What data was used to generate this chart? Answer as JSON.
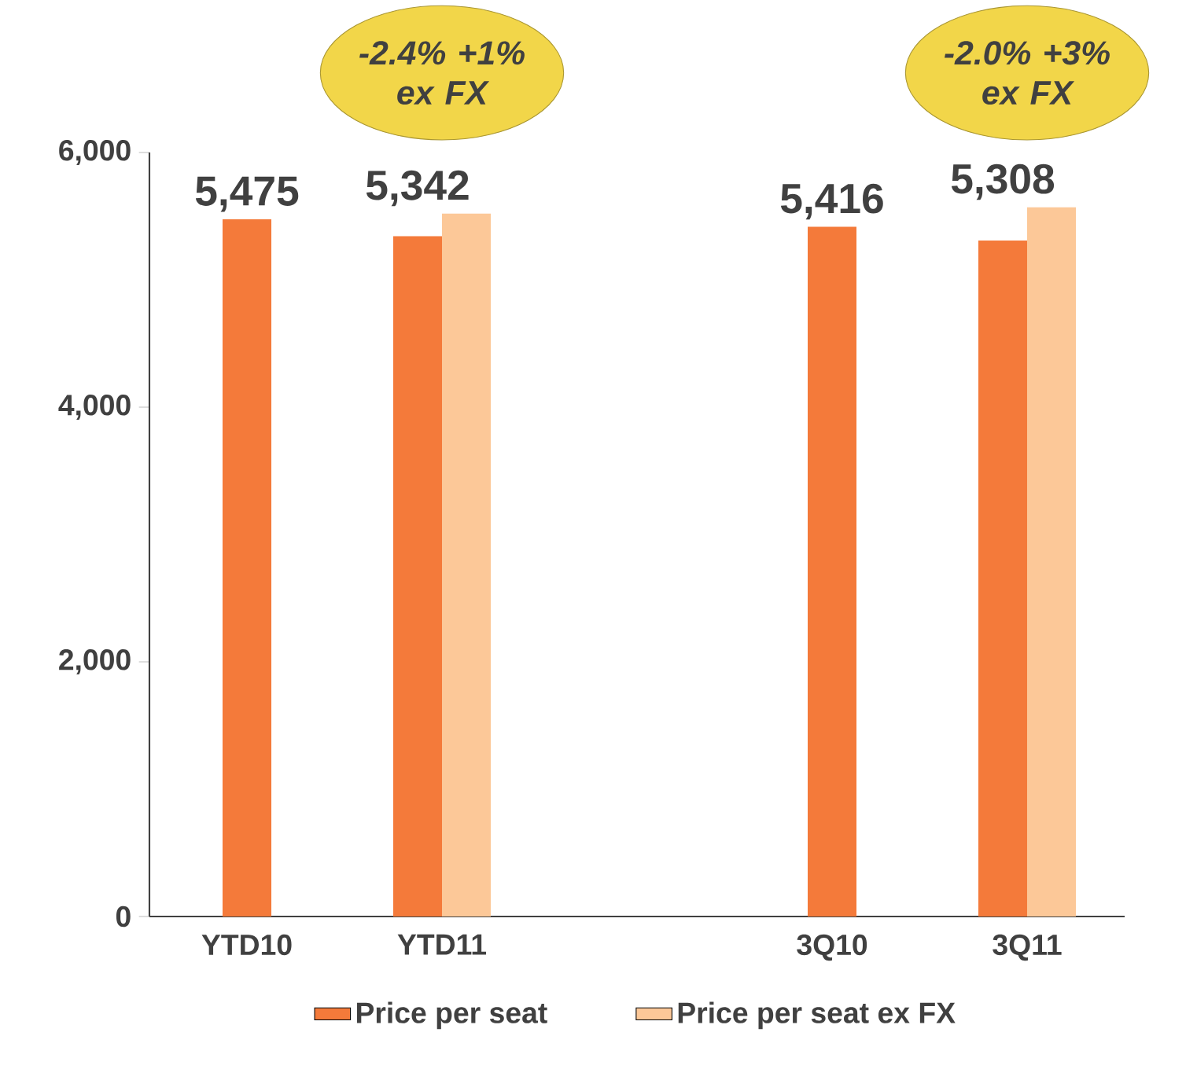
{
  "chart_data": {
    "type": "bar",
    "categories": [
      "YTD10",
      "YTD11",
      null,
      "3Q10",
      "3Q11"
    ],
    "series": [
      {
        "name": "Price per seat",
        "color": "#f47a3a",
        "values": [
          5475,
          5342,
          null,
          5416,
          5308
        ],
        "value_labels": [
          "5,475",
          "5,342",
          null,
          "5,416",
          "5,308"
        ]
      },
      {
        "name": "Price per seat ex FX",
        "color": "#fcc898",
        "values": [
          null,
          5520,
          null,
          null,
          5570
        ]
      }
    ],
    "ylim": [
      0,
      6000
    ],
    "yticks": [
      {
        "value": 0,
        "label": "0"
      },
      {
        "value": 2000,
        "label": "2,000"
      },
      {
        "value": 4000,
        "label": "4,000"
      },
      {
        "value": 6000,
        "label": "6,000"
      }
    ],
    "annotations": [
      "-2.4% +1% ex FX",
      "-2.0% +3% ex FX"
    ],
    "grid": false,
    "legend": "bottom"
  }
}
